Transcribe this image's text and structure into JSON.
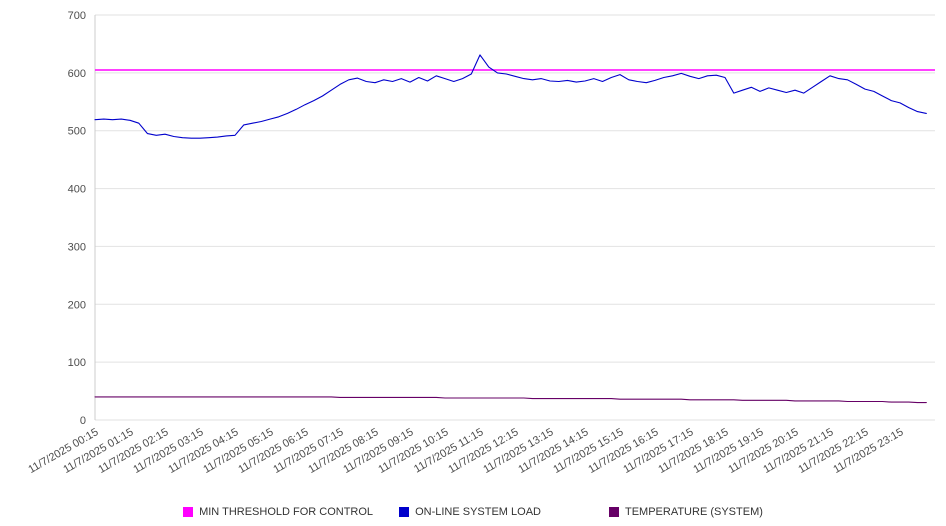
{
  "chart_data": {
    "type": "line",
    "title": "",
    "xlabel": "",
    "ylabel": "",
    "ylim": [
      0,
      700
    ],
    "y_ticks": [
      0,
      100,
      200,
      300,
      400,
      500,
      600,
      700
    ],
    "grid": true,
    "legend_position": "bottom",
    "x_minutes_step": 15,
    "x_tick_labels": [
      "11/7/2025 00:15",
      "11/7/2025 01:15",
      "11/7/2025 02:15",
      "11/7/2025 03:15",
      "11/7/2025 04:15",
      "11/7/2025 05:15",
      "11/7/2025 06:15",
      "11/7/2025 07:15",
      "11/7/2025 08:15",
      "11/7/2025 09:15",
      "11/7/2025 10:15",
      "11/7/2025 11:15",
      "11/7/2025 12:15",
      "11/7/2025 13:15",
      "11/7/2025 14:15",
      "11/7/2025 15:15",
      "11/7/2025 16:15",
      "11/7/2025 17:15",
      "11/7/2025 18:15",
      "11/7/2025 19:15",
      "11/7/2025 20:15",
      "11/7/2025 21:15",
      "11/7/2025 22:15",
      "11/7/2025 23:15"
    ],
    "series": [
      {
        "name": "MIN THRESHOLD FOR CONTROL",
        "color": "#ff00ff",
        "type": "constant",
        "value": 605
      },
      {
        "name": "ON-LINE SYSTEM LOAD",
        "color": "#0000cc",
        "type": "points",
        "values": [
          519,
          520,
          519,
          520,
          518,
          513,
          495,
          492,
          494,
          490,
          488,
          487,
          487,
          488,
          489,
          491,
          492,
          510,
          513,
          516,
          520,
          524,
          530,
          537,
          545,
          552,
          560,
          570,
          580,
          588,
          591,
          585,
          583,
          588,
          585,
          590,
          584,
          592,
          586,
          595,
          590,
          585,
          590,
          598,
          631,
          610,
          600,
          598,
          594,
          590,
          588,
          590,
          586,
          585,
          587,
          584,
          586,
          590,
          585,
          592,
          597,
          588,
          585,
          583,
          587,
          592,
          595,
          599,
          594,
          590,
          595,
          596,
          592,
          565,
          570,
          575,
          568,
          574,
          570,
          566,
          570,
          565,
          575,
          585,
          595,
          590,
          588,
          580,
          572,
          568,
          560,
          552,
          548,
          540,
          533,
          530
        ]
      },
      {
        "name": "TEMPERATURE (SYSTEM)",
        "color": "#660066",
        "type": "points",
        "values": [
          40,
          40,
          40,
          40,
          40,
          40,
          40,
          40,
          40,
          40,
          40,
          40,
          40,
          40,
          40,
          40,
          40,
          40,
          40,
          40,
          40,
          40,
          40,
          40,
          40,
          40,
          40,
          40,
          39,
          39,
          39,
          39,
          39,
          39,
          39,
          39,
          39,
          39,
          39,
          39,
          38,
          38,
          38,
          38,
          38,
          38,
          38,
          38,
          38,
          38,
          37,
          37,
          37,
          37,
          37,
          37,
          37,
          37,
          37,
          37,
          36,
          36,
          36,
          36,
          36,
          36,
          36,
          36,
          35,
          35,
          35,
          35,
          35,
          35,
          34,
          34,
          34,
          34,
          34,
          34,
          33,
          33,
          33,
          33,
          33,
          33,
          32,
          32,
          32,
          32,
          32,
          31,
          31,
          31,
          30,
          30
        ]
      }
    ]
  }
}
